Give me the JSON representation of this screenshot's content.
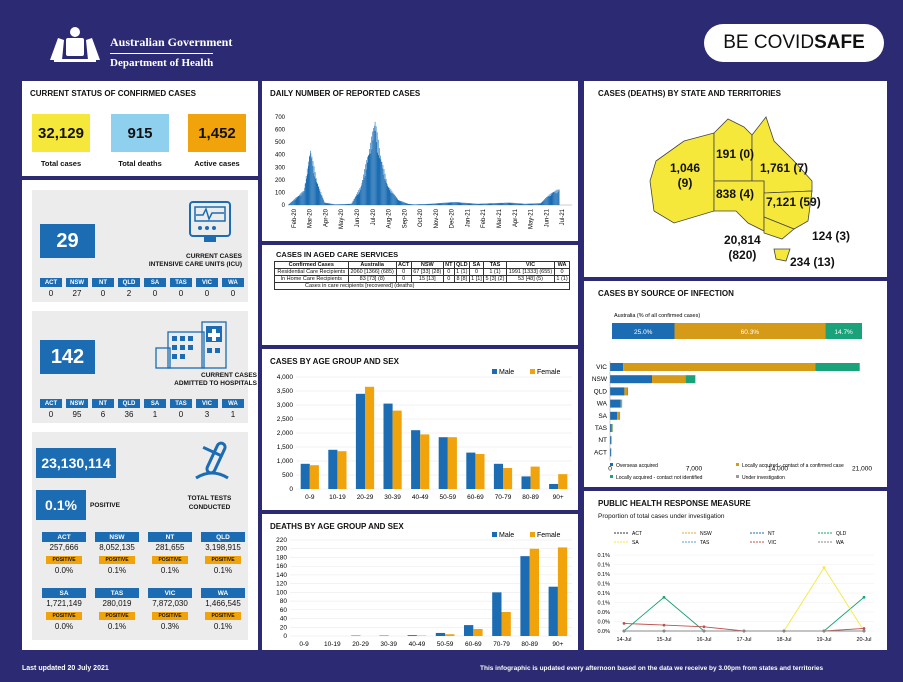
{
  "header": {
    "gov_line1": "Australian Government",
    "gov_line2": "Department of Health",
    "covid_be": "BE COVID",
    "covid_safe": "SAFE"
  },
  "status": {
    "title": "CURRENT STATUS OF CONFIRMED CASES",
    "total_cases": "32,129",
    "total_cases_label": "Total cases",
    "total_deaths": "915",
    "total_deaths_label": "Total deaths",
    "active_cases": "1,452",
    "active_cases_label": "Active cases"
  },
  "icu": {
    "value": "29",
    "label1": "CURRENT CASES",
    "label2": "INTENSIVE CARE UNITS (ICU)",
    "states": [
      "ACT",
      "NSW",
      "NT",
      "QLD",
      "SA",
      "TAS",
      "VIC",
      "WA"
    ],
    "values": [
      "0",
      "27",
      "0",
      "2",
      "0",
      "0",
      "0",
      "0"
    ]
  },
  "hosp": {
    "value": "142",
    "label1": "CURRENT CASES",
    "label2": "ADMITTED TO HOSPITALS",
    "states": [
      "ACT",
      "NSW",
      "NT",
      "QLD",
      "SA",
      "TAS",
      "VIC",
      "WA"
    ],
    "values": [
      "0",
      "95",
      "6",
      "36",
      "1",
      "0",
      "3",
      "1"
    ]
  },
  "tests": {
    "value": "23,130,114",
    "positive": "0.1%",
    "positive_label": "POSITIVE",
    "label1": "TOTAL TESTS",
    "label2": "CONDUCTED",
    "positive_tag": "POSITIVE",
    "states": [
      {
        "s": "ACT",
        "v": "257,666",
        "p": "0.0%"
      },
      {
        "s": "NSW",
        "v": "8,052,135",
        "p": "0.1%"
      },
      {
        "s": "NT",
        "v": "281,655",
        "p": "0.1%"
      },
      {
        "s": "QLD",
        "v": "3,198,915",
        "p": "0.1%"
      },
      {
        "s": "SA",
        "v": "1,721,149",
        "p": "0.0%"
      },
      {
        "s": "TAS",
        "v": "280,019",
        "p": "0.1%"
      },
      {
        "s": "VIC",
        "v": "7,872,030",
        "p": "0.3%"
      },
      {
        "s": "WA",
        "v": "1,466,545",
        "p": "0.1%"
      }
    ]
  },
  "aged": {
    "title": "CASES IN AGED CARE SERVICES",
    "headers": [
      "Confirmed Cases",
      "Australia",
      "ACT",
      "NSW",
      "NT",
      "QLD",
      "SA",
      "TAS",
      "VIC",
      "WA"
    ],
    "rows": [
      [
        "Residential Care Recipients",
        "2060 [1366] (685)",
        "0",
        "67 [33] (28)",
        "0",
        "1 (1)",
        "0",
        "1 (1)",
        "1991 [1333] (655)",
        "0"
      ],
      [
        "In Home Care Recipients",
        "83 [73] (8)",
        "0",
        "15 [13]",
        "0",
        "8 [8]",
        "1 [1]",
        "5 [3] (2)",
        "53 [48] (5)",
        "1 (1)"
      ]
    ],
    "note": "Cases in care recipients [recovered] (deaths)"
  },
  "map": {
    "title": "CASES (DEATHS) BY STATE AND TERRITORIES",
    "wa": "1,046\n(9)",
    "nt": "191 (0)",
    "qld": "1,761 (7)",
    "sa": "838 (4)",
    "nsw": "7,121 (59)",
    "act": "124 (3)",
    "vic": "20,814\n(820)",
    "tas": "234 (13)"
  },
  "footer": {
    "updated": "Last updated 20 July 2021",
    "note": "This infographic is updated every afternoon based on the data we receive by 3.00pm from states and territories"
  },
  "colors": {
    "navy": "#2b2a72",
    "blue": "#1b6cb3",
    "orange": "#f0a30a",
    "yellow": "#f5e83a",
    "teal": "#1aa37a"
  },
  "chart_data": [
    {
      "type": "bar",
      "title": "DAILY NUMBER OF REPORTED CASES",
      "ylim": [
        0,
        700
      ],
      "yticks": [
        0,
        100,
        200,
        300,
        400,
        500,
        600,
        700
      ],
      "xtick_labels": [
        "Feb-20",
        "Mar-20",
        "Apr-20",
        "May-20",
        "Jun-20",
        "Jul-20",
        "Aug-20",
        "Sep-20",
        "Oct-20",
        "Nov-20",
        "Dec-20",
        "Jan-21",
        "Feb-21",
        "Mar-21",
        "Apr-21",
        "May-21",
        "Jun-21",
        "Jul-21"
      ],
      "monthly_shape": [
        [
          0,
          2
        ],
        [
          1,
          120
        ],
        [
          1.4,
          460
        ],
        [
          1.8,
          200
        ],
        [
          2.3,
          20
        ],
        [
          3,
          5
        ],
        [
          4,
          10
        ],
        [
          4.6,
          150
        ],
        [
          5.2,
          500
        ],
        [
          5.5,
          700
        ],
        [
          5.8,
          430
        ],
        [
          6.3,
          160
        ],
        [
          7,
          40
        ],
        [
          7.6,
          10
        ],
        [
          8,
          5
        ],
        [
          9,
          10
        ],
        [
          10,
          20
        ],
        [
          10.6,
          25
        ],
        [
          11,
          20
        ],
        [
          12,
          10
        ],
        [
          13,
          15
        ],
        [
          14,
          20
        ],
        [
          15,
          10
        ],
        [
          16,
          15
        ],
        [
          16.4,
          70
        ],
        [
          16.8,
          110
        ],
        [
          17.2,
          130
        ]
      ]
    },
    {
      "type": "bar",
      "title": "CASES BY AGE GROUP AND SEX",
      "categories": [
        "0-9",
        "10-19",
        "20-29",
        "30-39",
        "40-49",
        "50-59",
        "60-69",
        "70-79",
        "80-89",
        "90+"
      ],
      "series": [
        {
          "name": "Male",
          "values": [
            900,
            1400,
            3400,
            3050,
            2100,
            1850,
            1300,
            900,
            450,
            180
          ]
        },
        {
          "name": "Female",
          "values": [
            850,
            1350,
            3650,
            2800,
            1950,
            1850,
            1250,
            750,
            800,
            530
          ]
        }
      ],
      "ylim": [
        0,
        4000
      ],
      "yticks": [
        0,
        500,
        1000,
        1500,
        2000,
        2500,
        3000,
        3500,
        4000
      ]
    },
    {
      "type": "bar",
      "title": "DEATHS BY AGE GROUP AND SEX",
      "categories": [
        "0-9",
        "10-19",
        "20-29",
        "30-39",
        "40-49",
        "50-59",
        "60-69",
        "70-79",
        "80-89",
        "90+"
      ],
      "series": [
        {
          "name": "Male",
          "values": [
            0,
            0,
            1,
            1,
            2,
            7,
            25,
            100,
            183,
            113
          ]
        },
        {
          "name": "Female",
          "values": [
            0,
            0,
            0,
            0,
            1,
            4,
            16,
            55,
            200,
            203
          ]
        }
      ],
      "ylim": [
        0,
        220
      ],
      "yticks": [
        0,
        20,
        40,
        60,
        80,
        100,
        120,
        140,
        160,
        180,
        200,
        220
      ]
    },
    {
      "type": "bar",
      "title": "CASES BY SOURCE OF INFECTION",
      "subtitle": "Australia (% of all confirmed cases)",
      "summary": [
        {
          "name": "Overseas acquired",
          "pct": 25.0,
          "label": "25.0%"
        },
        {
          "name": "Locally acquired - contact of a confirmed case",
          "pct": 60.3,
          "label": "60.3%"
        },
        {
          "name": "Locally acquired - contact not identified",
          "pct": 14.7,
          "label": "14.7%"
        }
      ],
      "categories": [
        "VIC",
        "NSW",
        "QLD",
        "WA",
        "SA",
        "TAS",
        "NT",
        "ACT"
      ],
      "xlim": [
        0,
        21000
      ],
      "xticks": [
        "0",
        "7,000",
        "14,000",
        "21,000"
      ],
      "series": [
        {
          "name": "Overseas acquired",
          "values": [
            1100,
            3500,
            1200,
            900,
            600,
            150,
            100,
            100
          ]
        },
        {
          "name": "Locally acquired - contact of a confirmed case",
          "values": [
            16000,
            2800,
            250,
            80,
            200,
            50,
            50,
            10
          ]
        },
        {
          "name": "Locally acquired - contact not identified",
          "values": [
            3700,
            800,
            50,
            30,
            40,
            30,
            0,
            0
          ]
        },
        {
          "name": "Under investigation",
          "values": [
            20,
            30,
            5,
            5,
            0,
            0,
            0,
            0
          ]
        }
      ],
      "legend": [
        "Overseas acquired",
        "Locally acquired - contact of a confirmed case",
        "Locally acquired - contact not identified",
        "Under investigation"
      ]
    },
    {
      "type": "line",
      "title": "PUBLIC HEALTH RESPONSE MEASURE",
      "subtitle": "Proportion of total cases under investigation",
      "x": [
        "14-Jul",
        "15-Jul",
        "16-Jul",
        "17-Jul",
        "18-Jul",
        "19-Jul",
        "20-Jul"
      ],
      "yticks": [
        "0.0%",
        "0.0%",
        "0.0%",
        "0.1%",
        "0.1%",
        "0.1%",
        "0.1%",
        "0.1%",
        "0.1%"
      ],
      "series": [
        {
          "name": "ACT",
          "values": [
            0,
            0,
            0,
            0,
            0,
            0,
            0
          ]
        },
        {
          "name": "NSW",
          "values": [
            0,
            0,
            0,
            0,
            0,
            0,
            0
          ]
        },
        {
          "name": "NT",
          "values": [
            0,
            0,
            0,
            0,
            0,
            0,
            0
          ]
        },
        {
          "name": "QLD",
          "values": [
            0,
            0.04,
            0,
            0,
            0,
            0,
            0.04
          ]
        },
        {
          "name": "SA",
          "values": [
            0,
            0,
            0,
            0,
            0,
            0.075,
            0
          ]
        },
        {
          "name": "TAS",
          "values": [
            0,
            0,
            0,
            0,
            0,
            0,
            0
          ]
        },
        {
          "name": "VIC",
          "values": [
            0.009,
            0.007,
            0.005,
            0,
            0,
            0,
            0.003
          ]
        },
        {
          "name": "WA",
          "values": [
            0,
            0,
            0,
            0,
            0,
            0,
            0
          ]
        }
      ]
    }
  ]
}
